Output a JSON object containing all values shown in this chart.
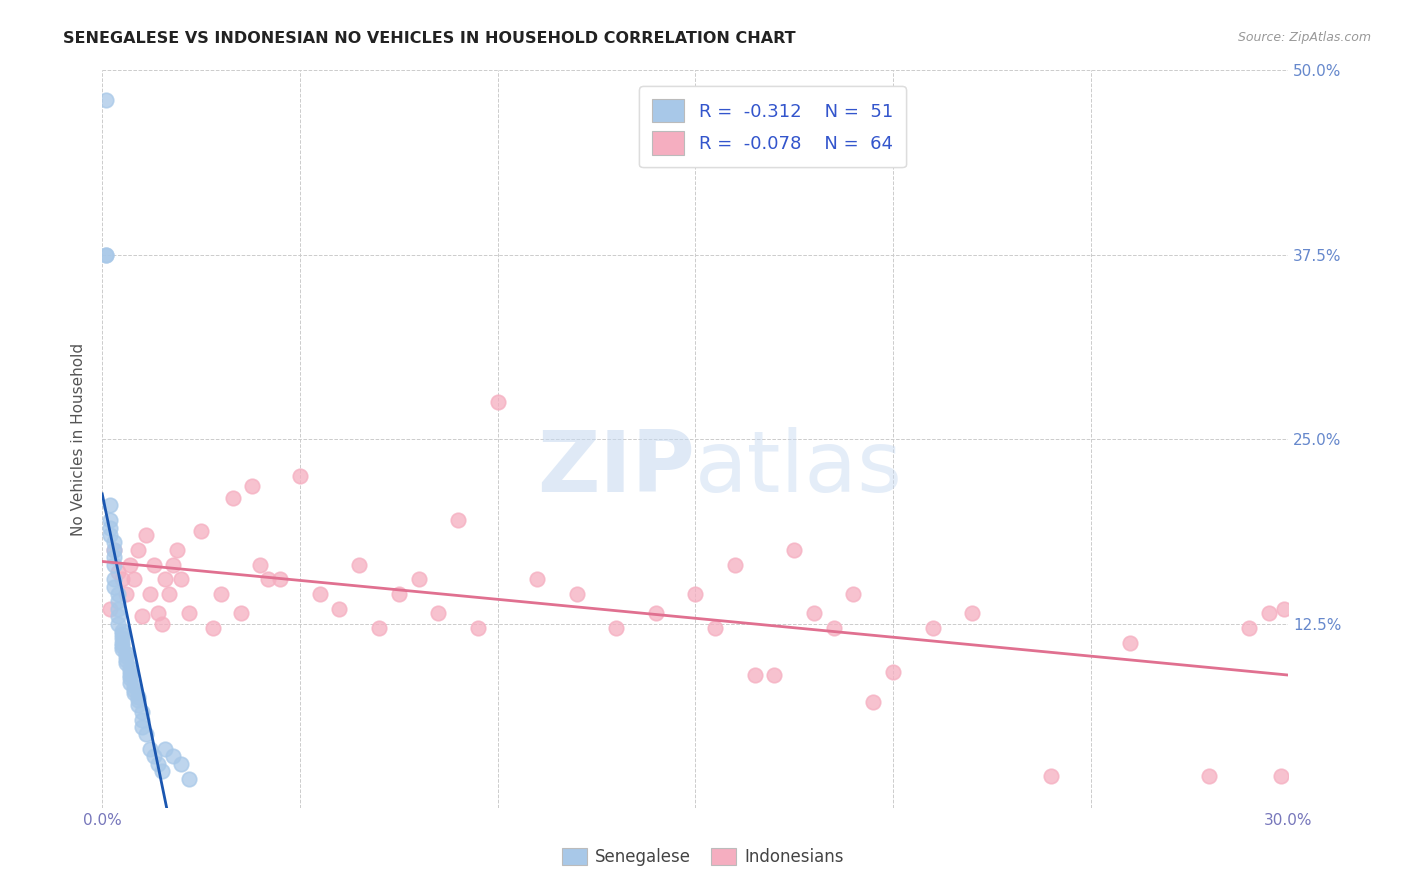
{
  "title": "SENEGALESE VS INDONESIAN NO VEHICLES IN HOUSEHOLD CORRELATION CHART",
  "source": "Source: ZipAtlas.com",
  "ylabel": "No Vehicles in Household",
  "xlabel": "",
  "xlim": [
    0.0,
    0.3
  ],
  "ylim": [
    0.0,
    0.5
  ],
  "xticks": [
    0.0,
    0.05,
    0.1,
    0.15,
    0.2,
    0.25,
    0.3
  ],
  "xticklabels": [
    "0.0%",
    "",
    "",
    "",
    "",
    "",
    "30.0%"
  ],
  "yticks": [
    0.0,
    0.125,
    0.25,
    0.375,
    0.5
  ],
  "yticklabels": [
    "",
    "12.5%",
    "25.0%",
    "37.5%",
    "50.0%"
  ],
  "senegalese_color": "#a8c8e8",
  "indonesian_color": "#f5aec0",
  "trendline_senegalese_color": "#1a56b0",
  "trendline_indonesian_color": "#e07090",
  "legend_R_senegalese": "-0.312",
  "legend_N_senegalese": "51",
  "legend_R_indonesian": "-0.078",
  "legend_N_indonesian": "64",
  "background_color": "#ffffff",
  "grid_color": "#cccccc",
  "watermark_zip": "ZIP",
  "watermark_atlas": "atlas",
  "sen_x": [
    0.001,
    0.001,
    0.001,
    0.002,
    0.002,
    0.002,
    0.002,
    0.003,
    0.003,
    0.003,
    0.003,
    0.003,
    0.003,
    0.004,
    0.004,
    0.004,
    0.004,
    0.004,
    0.005,
    0.005,
    0.005,
    0.005,
    0.005,
    0.005,
    0.006,
    0.006,
    0.006,
    0.006,
    0.007,
    0.007,
    0.007,
    0.007,
    0.007,
    0.008,
    0.008,
    0.008,
    0.009,
    0.009,
    0.009,
    0.01,
    0.01,
    0.01,
    0.011,
    0.012,
    0.013,
    0.014,
    0.015,
    0.016,
    0.018,
    0.02,
    0.022
  ],
  "sen_y": [
    0.48,
    0.375,
    0.375,
    0.205,
    0.195,
    0.19,
    0.185,
    0.18,
    0.175,
    0.17,
    0.165,
    0.155,
    0.15,
    0.145,
    0.14,
    0.135,
    0.13,
    0.125,
    0.12,
    0.118,
    0.115,
    0.112,
    0.11,
    0.108,
    0.105,
    0.103,
    0.1,
    0.098,
    0.095,
    0.093,
    0.09,
    0.088,
    0.085,
    0.083,
    0.08,
    0.078,
    0.075,
    0.073,
    0.07,
    0.065,
    0.06,
    0.055,
    0.05,
    0.04,
    0.035,
    0.03,
    0.025,
    0.04,
    0.035,
    0.03,
    0.02
  ],
  "ind_x": [
    0.002,
    0.003,
    0.004,
    0.005,
    0.006,
    0.007,
    0.008,
    0.009,
    0.01,
    0.011,
    0.012,
    0.013,
    0.014,
    0.015,
    0.016,
    0.017,
    0.018,
    0.019,
    0.02,
    0.022,
    0.025,
    0.028,
    0.03,
    0.033,
    0.035,
    0.038,
    0.04,
    0.042,
    0.045,
    0.05,
    0.055,
    0.06,
    0.065,
    0.07,
    0.075,
    0.08,
    0.085,
    0.09,
    0.095,
    0.1,
    0.11,
    0.12,
    0.13,
    0.14,
    0.15,
    0.155,
    0.16,
    0.165,
    0.17,
    0.175,
    0.18,
    0.185,
    0.19,
    0.195,
    0.2,
    0.21,
    0.22,
    0.24,
    0.26,
    0.28,
    0.29,
    0.295,
    0.298,
    0.299
  ],
  "ind_y": [
    0.135,
    0.175,
    0.16,
    0.155,
    0.145,
    0.165,
    0.155,
    0.175,
    0.13,
    0.185,
    0.145,
    0.165,
    0.132,
    0.125,
    0.155,
    0.145,
    0.165,
    0.175,
    0.155,
    0.132,
    0.188,
    0.122,
    0.145,
    0.21,
    0.132,
    0.218,
    0.165,
    0.155,
    0.155,
    0.225,
    0.145,
    0.135,
    0.165,
    0.122,
    0.145,
    0.155,
    0.132,
    0.195,
    0.122,
    0.275,
    0.155,
    0.145,
    0.122,
    0.132,
    0.145,
    0.122,
    0.165,
    0.09,
    0.09,
    0.175,
    0.132,
    0.122,
    0.145,
    0.072,
    0.092,
    0.122,
    0.132,
    0.022,
    0.112,
    0.022,
    0.122,
    0.132,
    0.022,
    0.135
  ]
}
